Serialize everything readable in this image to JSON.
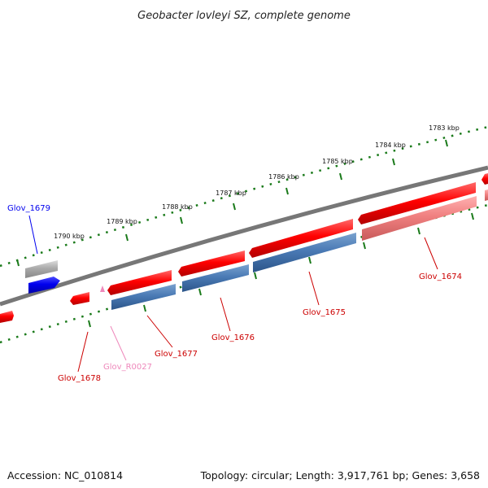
{
  "title": "Geobacter lovleyi SZ, complete genome",
  "footer": {
    "accession": "Accession: NC_010814",
    "topology": "Topology: circular; Length: 3,917,761 bp; Genes: 3,658"
  },
  "colors": {
    "backbone": "#777777",
    "tick": "#1a7a1a",
    "forward_gene": "#ee0000",
    "reverse_gene": "#4a7ab5",
    "pseudo_gene": "#f08080",
    "rna": "#ee88bb",
    "grey_feature": "#aaaaaa",
    "blue_feature": "#0000ee"
  },
  "ticks": [
    {
      "label": "1790 kbp"
    },
    {
      "label": "1789 kbp"
    },
    {
      "label": "1788 kbp"
    },
    {
      "label": "1787 kbp"
    },
    {
      "label": "1786 kbp"
    },
    {
      "label": "1785 kbp"
    },
    {
      "label": "1784 kbp"
    },
    {
      "label": "1783 kbp"
    }
  ],
  "genes": [
    {
      "name": "Glov_1679",
      "color": "#0000ee"
    },
    {
      "name": "Glov_1678",
      "color": "#cc0000"
    },
    {
      "name": "Glov_R0027",
      "color": "#ee88bb"
    },
    {
      "name": "Glov_1677",
      "color": "#cc0000"
    },
    {
      "name": "Glov_1676",
      "color": "#cc0000"
    },
    {
      "name": "Glov_1675",
      "color": "#cc0000"
    },
    {
      "name": "Glov_1674",
      "color": "#cc0000"
    }
  ]
}
